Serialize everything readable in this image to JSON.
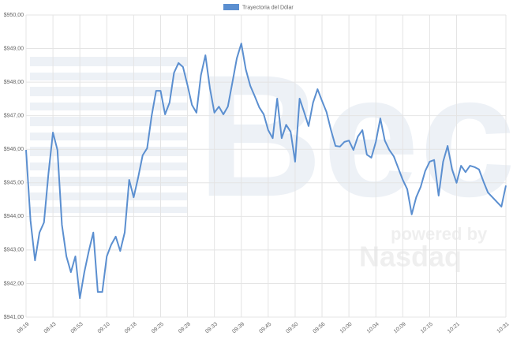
{
  "chart_data": {
    "type": "line",
    "legend": "top",
    "grid": true,
    "categories": [
      "08:19",
      null,
      null,
      null,
      null,
      null,
      "08:43",
      null,
      null,
      null,
      null,
      null,
      "08:53",
      null,
      null,
      null,
      null,
      null,
      "09:10",
      null,
      null,
      null,
      null,
      null,
      "09:18",
      null,
      null,
      null,
      null,
      null,
      "09:25",
      null,
      null,
      null,
      null,
      null,
      "09:28",
      null,
      null,
      null,
      null,
      null,
      "09:33",
      null,
      null,
      null,
      null,
      null,
      "09:39",
      null,
      null,
      null,
      null,
      null,
      "09:45",
      null,
      null,
      null,
      null,
      null,
      "09:50",
      null,
      null,
      null,
      null,
      null,
      "09:56",
      null,
      null,
      null,
      null,
      null,
      "10:00",
      null,
      null,
      null,
      null,
      null,
      "10:04",
      null,
      null,
      null,
      null,
      null,
      "10:09",
      null,
      null,
      null,
      null,
      null,
      "10:15",
      null,
      null,
      null,
      null,
      null,
      "10:21",
      null,
      null,
      null,
      null,
      null,
      null,
      null,
      null,
      null,
      null,
      "10:31"
    ],
    "series": [
      {
        "name": "Trayectoria del Dólar",
        "color": "#5b8fd0",
        "values": [
          945.98,
          943.87,
          942.69,
          943.52,
          943.82,
          945.28,
          946.5,
          945.98,
          943.75,
          942.81,
          942.34,
          942.81,
          941.56,
          942.34,
          942.97,
          943.52,
          941.75,
          941.75,
          942.81,
          943.16,
          943.4,
          942.97,
          943.52,
          945.09,
          944.57,
          945.16,
          945.82,
          946.03,
          946.99,
          947.74,
          947.74,
          947.04,
          947.39,
          948.28,
          948.57,
          948.45,
          947.91,
          947.32,
          947.09,
          948.21,
          948.8,
          947.82,
          947.09,
          947.27,
          947.04,
          947.27,
          947.98,
          948.71,
          949.15,
          948.38,
          947.89,
          947.58,
          947.25,
          947.04,
          946.57,
          946.33,
          947.51,
          946.33,
          946.73,
          946.52,
          945.63,
          947.51,
          947.11,
          946.69,
          947.39,
          947.79,
          947.44,
          947.11,
          946.57,
          946.1,
          946.08,
          946.22,
          946.26,
          945.98,
          946.38,
          946.57,
          945.84,
          945.75,
          946.22,
          946.92,
          946.26,
          945.98,
          945.79,
          945.44,
          945.09,
          944.81,
          944.06,
          944.57,
          944.88,
          945.35,
          945.63,
          945.68,
          944.62,
          945.63,
          946.1,
          945.4,
          945.0,
          945.51,
          945.32,
          945.51,
          945.47,
          945.4,
          945.04,
          944.71,
          944.57,
          944.43,
          944.29,
          944.92
        ]
      }
    ],
    "ylim": [
      941,
      950
    ],
    "yticks": [
      {
        "value": 941,
        "label": "$941,00"
      },
      {
        "value": 942,
        "label": "$942,00"
      },
      {
        "value": 943,
        "label": "$943,00"
      },
      {
        "value": 944,
        "label": "$944,00"
      },
      {
        "value": 945,
        "label": "$945,00"
      },
      {
        "value": 946,
        "label": "$946,00"
      },
      {
        "value": 947,
        "label": "$947,00"
      },
      {
        "value": 948,
        "label": "$948,00"
      },
      {
        "value": 949,
        "label": "$949,00"
      },
      {
        "value": 950,
        "label": "$950,00"
      }
    ]
  },
  "watermark": {
    "logo": "Bec",
    "tagline": "powered by",
    "brand": "Nasdaq"
  }
}
